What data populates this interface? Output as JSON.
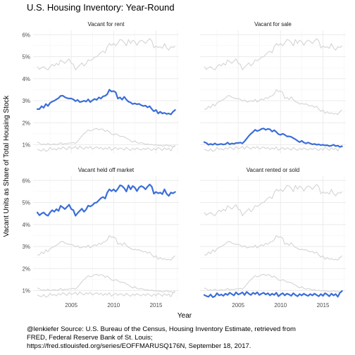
{
  "chart_data": {
    "type": "line",
    "title": "U.S. Housing Inventory: Year-Round",
    "xlabel": "Year",
    "ylabel": "Vacant Units as Share of Total Housing Stock",
    "x_ticks": [
      "2005",
      "2010",
      "2015"
    ],
    "y_ticks": [
      "1%",
      "2%",
      "3%",
      "4%",
      "5%",
      "6%"
    ],
    "ylim": [
      0.006,
      0.062
    ],
    "xlim": [
      2000.5,
      2017.7
    ],
    "facets": [
      "Vacant for rent",
      "Vacant for sale",
      "Vacant held off market",
      "Vacant rented or sold"
    ],
    "highlight_color": "#3b6ed8",
    "background_color": "#d4d4d4",
    "grid": true,
    "series": [
      {
        "name": "Vacant for rent",
        "points": [
          [
            2001.0,
            0.0262
          ],
          [
            2001.25,
            0.0262
          ],
          [
            2001.5,
            0.0275
          ],
          [
            2001.75,
            0.0268
          ],
          [
            2002.0,
            0.0285
          ],
          [
            2002.25,
            0.0276
          ],
          [
            2002.5,
            0.029
          ],
          [
            2002.75,
            0.0296
          ],
          [
            2003.0,
            0.03
          ],
          [
            2003.25,
            0.0306
          ],
          [
            2003.5,
            0.0312
          ],
          [
            2003.75,
            0.0322
          ],
          [
            2004.0,
            0.0323
          ],
          [
            2004.25,
            0.0316
          ],
          [
            2004.5,
            0.0312
          ],
          [
            2004.75,
            0.031
          ],
          [
            2005.0,
            0.031
          ],
          [
            2005.25,
            0.0306
          ],
          [
            2005.5,
            0.0298
          ],
          [
            2005.75,
            0.0304
          ],
          [
            2006.0,
            0.0294
          ],
          [
            2006.25,
            0.0296
          ],
          [
            2006.5,
            0.03
          ],
          [
            2006.75,
            0.0296
          ],
          [
            2007.0,
            0.0306
          ],
          [
            2007.25,
            0.0294
          ],
          [
            2007.5,
            0.0302
          ],
          [
            2007.75,
            0.0308
          ],
          [
            2008.0,
            0.0304
          ],
          [
            2008.25,
            0.0315
          ],
          [
            2008.5,
            0.031
          ],
          [
            2008.75,
            0.032
          ],
          [
            2009.0,
            0.0322
          ],
          [
            2009.25,
            0.033
          ],
          [
            2009.5,
            0.035
          ],
          [
            2009.75,
            0.0342
          ],
          [
            2010.0,
            0.0344
          ],
          [
            2010.25,
            0.0338
          ],
          [
            2010.5,
            0.031
          ],
          [
            2010.75,
            0.0315
          ],
          [
            2011.0,
            0.0305
          ],
          [
            2011.25,
            0.0318
          ],
          [
            2011.5,
            0.0305
          ],
          [
            2011.75,
            0.0296
          ],
          [
            2012.0,
            0.0292
          ],
          [
            2012.25,
            0.0285
          ],
          [
            2012.5,
            0.0288
          ],
          [
            2012.75,
            0.0284
          ],
          [
            2013.0,
            0.0286
          ],
          [
            2013.25,
            0.028
          ],
          [
            2013.5,
            0.0276
          ],
          [
            2013.75,
            0.0278
          ],
          [
            2014.0,
            0.027
          ],
          [
            2014.25,
            0.0275
          ],
          [
            2014.5,
            0.0262
          ],
          [
            2014.75,
            0.0252
          ],
          [
            2015.0,
            0.0258
          ],
          [
            2015.25,
            0.0242
          ],
          [
            2015.5,
            0.025
          ],
          [
            2015.75,
            0.0242
          ],
          [
            2016.0,
            0.0245
          ],
          [
            2016.25,
            0.024
          ],
          [
            2016.5,
            0.0242
          ],
          [
            2016.75,
            0.0238
          ],
          [
            2017.0,
            0.025
          ],
          [
            2017.25,
            0.0258
          ]
        ]
      },
      {
        "name": "Vacant for sale",
        "points": [
          [
            2001.0,
            0.0112
          ],
          [
            2001.25,
            0.0108
          ],
          [
            2001.5,
            0.01
          ],
          [
            2001.75,
            0.0104
          ],
          [
            2002.0,
            0.01
          ],
          [
            2002.25,
            0.0106
          ],
          [
            2002.5,
            0.01
          ],
          [
            2002.75,
            0.0102
          ],
          [
            2003.0,
            0.0104
          ],
          [
            2003.25,
            0.0101
          ],
          [
            2003.5,
            0.0103
          ],
          [
            2003.75,
            0.011
          ],
          [
            2004.0,
            0.0102
          ],
          [
            2004.25,
            0.0106
          ],
          [
            2004.5,
            0.0104
          ],
          [
            2004.75,
            0.0108
          ],
          [
            2005.0,
            0.0108
          ],
          [
            2005.25,
            0.011
          ],
          [
            2005.5,
            0.0106
          ],
          [
            2005.75,
            0.0116
          ],
          [
            2006.0,
            0.0128
          ],
          [
            2006.25,
            0.014
          ],
          [
            2006.5,
            0.015
          ],
          [
            2006.75,
            0.0158
          ],
          [
            2007.0,
            0.0168
          ],
          [
            2007.25,
            0.0162
          ],
          [
            2007.5,
            0.0166
          ],
          [
            2007.75,
            0.0172
          ],
          [
            2008.0,
            0.0174
          ],
          [
            2008.25,
            0.0168
          ],
          [
            2008.5,
            0.0172
          ],
          [
            2008.75,
            0.017
          ],
          [
            2009.0,
            0.016
          ],
          [
            2009.25,
            0.0166
          ],
          [
            2009.5,
            0.0158
          ],
          [
            2009.75,
            0.0148
          ],
          [
            2010.0,
            0.0145
          ],
          [
            2010.25,
            0.015
          ],
          [
            2010.5,
            0.0145
          ],
          [
            2010.75,
            0.0138
          ],
          [
            2011.0,
            0.0138
          ],
          [
            2011.25,
            0.0136
          ],
          [
            2011.5,
            0.013
          ],
          [
            2011.75,
            0.0125
          ],
          [
            2012.0,
            0.0118
          ],
          [
            2012.25,
            0.0112
          ],
          [
            2012.5,
            0.0118
          ],
          [
            2012.75,
            0.011
          ],
          [
            2013.0,
            0.0106
          ],
          [
            2013.25,
            0.011
          ],
          [
            2013.5,
            0.0106
          ],
          [
            2013.75,
            0.0102
          ],
          [
            2014.0,
            0.0104
          ],
          [
            2014.25,
            0.01
          ],
          [
            2014.5,
            0.0102
          ],
          [
            2014.75,
            0.0098
          ],
          [
            2015.0,
            0.01
          ],
          [
            2015.25,
            0.0097
          ],
          [
            2015.5,
            0.0098
          ],
          [
            2015.75,
            0.0094
          ],
          [
            2016.0,
            0.0096
          ],
          [
            2016.25,
            0.01
          ],
          [
            2016.5,
            0.0094
          ],
          [
            2016.75,
            0.0096
          ],
          [
            2017.0,
            0.009
          ],
          [
            2017.25,
            0.0093
          ]
        ]
      },
      {
        "name": "Vacant held off market",
        "points": [
          [
            2001.0,
            0.0455
          ],
          [
            2001.25,
            0.0442
          ],
          [
            2001.5,
            0.045
          ],
          [
            2001.75,
            0.0455
          ],
          [
            2002.0,
            0.0445
          ],
          [
            2002.25,
            0.044
          ],
          [
            2002.5,
            0.0455
          ],
          [
            2002.75,
            0.0465
          ],
          [
            2003.0,
            0.0458
          ],
          [
            2003.25,
            0.047
          ],
          [
            2003.5,
            0.0462
          ],
          [
            2003.75,
            0.0485
          ],
          [
            2004.0,
            0.0478
          ],
          [
            2004.25,
            0.047
          ],
          [
            2004.5,
            0.048
          ],
          [
            2004.75,
            0.049
          ],
          [
            2005.0,
            0.047
          ],
          [
            2005.25,
            0.0465
          ],
          [
            2005.5,
            0.044
          ],
          [
            2005.75,
            0.0452
          ],
          [
            2006.0,
            0.0462
          ],
          [
            2006.25,
            0.0472
          ],
          [
            2006.5,
            0.0458
          ],
          [
            2006.75,
            0.0468
          ],
          [
            2007.0,
            0.0486
          ],
          [
            2007.25,
            0.0482
          ],
          [
            2007.5,
            0.0488
          ],
          [
            2007.75,
            0.0498
          ],
          [
            2008.0,
            0.05
          ],
          [
            2008.25,
            0.051
          ],
          [
            2008.5,
            0.052
          ],
          [
            2008.75,
            0.0525
          ],
          [
            2009.0,
            0.0518
          ],
          [
            2009.25,
            0.0545
          ],
          [
            2009.5,
            0.056
          ],
          [
            2009.75,
            0.0552
          ],
          [
            2010.0,
            0.056
          ],
          [
            2010.25,
            0.055
          ],
          [
            2010.5,
            0.0562
          ],
          [
            2010.75,
            0.0578
          ],
          [
            2011.0,
            0.0575
          ],
          [
            2011.25,
            0.0565
          ],
          [
            2011.5,
            0.055
          ],
          [
            2011.75,
            0.0578
          ],
          [
            2012.0,
            0.056
          ],
          [
            2012.25,
            0.0575
          ],
          [
            2012.5,
            0.0568
          ],
          [
            2012.75,
            0.0552
          ],
          [
            2013.0,
            0.0568
          ],
          [
            2013.25,
            0.0575
          ],
          [
            2013.5,
            0.057
          ],
          [
            2013.75,
            0.056
          ],
          [
            2014.0,
            0.0572
          ],
          [
            2014.25,
            0.0582
          ],
          [
            2014.5,
            0.0572
          ],
          [
            2014.75,
            0.054
          ],
          [
            2015.0,
            0.0548
          ],
          [
            2015.25,
            0.0542
          ],
          [
            2015.5,
            0.0545
          ],
          [
            2015.75,
            0.0538
          ],
          [
            2016.0,
            0.056
          ],
          [
            2016.25,
            0.054
          ],
          [
            2016.5,
            0.053
          ],
          [
            2016.75,
            0.0545
          ],
          [
            2017.0,
            0.0542
          ],
          [
            2017.25,
            0.0548
          ]
        ]
      },
      {
        "name": "Vacant rented or sold",
        "points": [
          [
            2001.0,
            0.008
          ],
          [
            2001.25,
            0.0075
          ],
          [
            2001.5,
            0.0072
          ],
          [
            2001.75,
            0.0082
          ],
          [
            2002.0,
            0.007
          ],
          [
            2002.25,
            0.0074
          ],
          [
            2002.5,
            0.0088
          ],
          [
            2002.75,
            0.0078
          ],
          [
            2003.0,
            0.0082
          ],
          [
            2003.25,
            0.0076
          ],
          [
            2003.5,
            0.0086
          ],
          [
            2003.75,
            0.008
          ],
          [
            2004.0,
            0.009
          ],
          [
            2004.25,
            0.0084
          ],
          [
            2004.5,
            0.0078
          ],
          [
            2004.75,
            0.0092
          ],
          [
            2005.0,
            0.0082
          ],
          [
            2005.25,
            0.0086
          ],
          [
            2005.5,
            0.0092
          ],
          [
            2005.75,
            0.008
          ],
          [
            2006.0,
            0.0094
          ],
          [
            2006.25,
            0.0086
          ],
          [
            2006.5,
            0.008
          ],
          [
            2006.75,
            0.009
          ],
          [
            2007.0,
            0.0084
          ],
          [
            2007.25,
            0.0092
          ],
          [
            2007.5,
            0.008
          ],
          [
            2007.75,
            0.0086
          ],
          [
            2008.0,
            0.009
          ],
          [
            2008.25,
            0.0082
          ],
          [
            2008.5,
            0.0088
          ],
          [
            2008.75,
            0.0078
          ],
          [
            2009.0,
            0.0086
          ],
          [
            2009.25,
            0.008
          ],
          [
            2009.5,
            0.009
          ],
          [
            2009.75,
            0.0074
          ],
          [
            2010.0,
            0.0082
          ],
          [
            2010.25,
            0.0088
          ],
          [
            2010.5,
            0.0078
          ],
          [
            2010.75,
            0.0086
          ],
          [
            2011.0,
            0.0082
          ],
          [
            2011.25,
            0.0076
          ],
          [
            2011.5,
            0.0088
          ],
          [
            2011.75,
            0.008
          ],
          [
            2012.0,
            0.0074
          ],
          [
            2012.25,
            0.0084
          ],
          [
            2012.5,
            0.0078
          ],
          [
            2012.75,
            0.0086
          ],
          [
            2013.0,
            0.008
          ],
          [
            2013.25,
            0.0076
          ],
          [
            2013.5,
            0.0084
          ],
          [
            2013.75,
            0.0078
          ],
          [
            2014.0,
            0.0086
          ],
          [
            2014.25,
            0.008
          ],
          [
            2014.5,
            0.0074
          ],
          [
            2014.75,
            0.0084
          ],
          [
            2015.0,
            0.0076
          ],
          [
            2015.25,
            0.0088
          ],
          [
            2015.5,
            0.0082
          ],
          [
            2015.75,
            0.0074
          ],
          [
            2016.0,
            0.0086
          ],
          [
            2016.25,
            0.0078
          ],
          [
            2016.5,
            0.0084
          ],
          [
            2016.75,
            0.0072
          ],
          [
            2017.0,
            0.009
          ],
          [
            2017.25,
            0.0098
          ]
        ]
      }
    ]
  },
  "caption": {
    "line1": "@lenkiefer Source: U.S. Bureau of the Census, Housing Inventory Estimate, retrieved from",
    "line2": "FRED, Federal Reserve Bank of St. Louis;",
    "line3": "https://fred.stlouisfed.org/series/EOFFMARUSQ176N, September 18, 2017."
  }
}
